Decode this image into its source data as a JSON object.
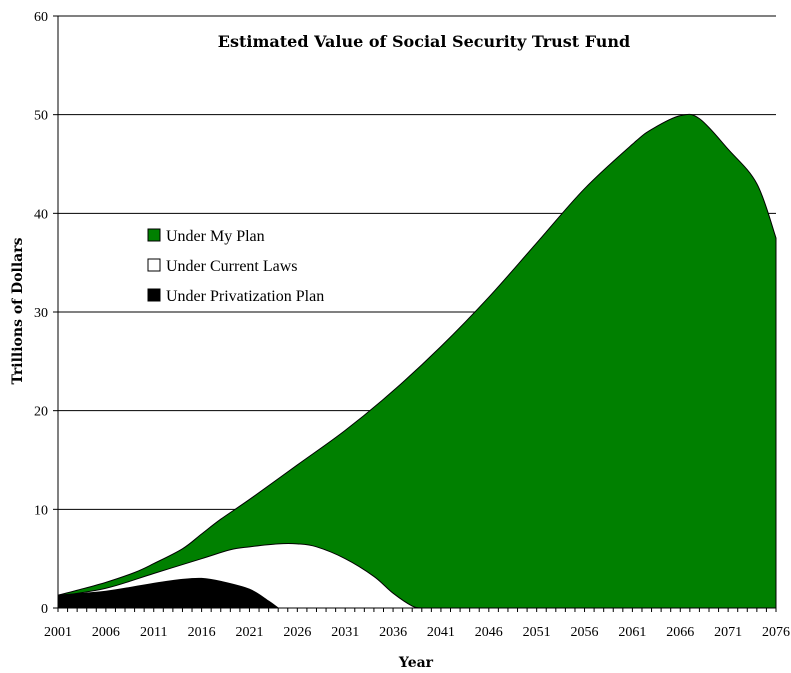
{
  "chart_data": {
    "type": "area",
    "title": "Estimated Value of Social Security Trust Fund",
    "xlabel": "Year",
    "ylabel": "Trillions of Dollars",
    "ylim": [
      0,
      60
    ],
    "yticks": [
      0,
      10,
      20,
      30,
      40,
      50,
      60
    ],
    "xlim": [
      2001,
      2076
    ],
    "xticks": [
      2001,
      2006,
      2011,
      2016,
      2021,
      2026,
      2031,
      2036,
      2041,
      2046,
      2051,
      2056,
      2061,
      2066,
      2071,
      2076
    ],
    "grid": "horizontal",
    "legend_position": "left",
    "series": [
      {
        "name": "Under My Plan",
        "color": "#008000",
        "x": [
          2001,
          2003,
          2006,
          2009,
          2011,
          2014,
          2016,
          2018,
          2021,
          2026,
          2031,
          2036,
          2041,
          2046,
          2051,
          2056,
          2061,
          2063,
          2066,
          2068,
          2071,
          2074,
          2076
        ],
        "values": [
          1.3,
          1.8,
          2.6,
          3.6,
          4.5,
          6.0,
          7.5,
          9.0,
          11.0,
          14.5,
          18.0,
          22.0,
          26.5,
          31.5,
          37.0,
          42.5,
          47.0,
          48.5,
          49.9,
          49.6,
          46.5,
          43.0,
          37.5
        ]
      },
      {
        "name": "Under Current Laws",
        "color": "#ffffff",
        "x": [
          2001,
          2006,
          2011,
          2016,
          2019,
          2021,
          2024,
          2026,
          2028,
          2031,
          2034,
          2036,
          2038,
          2039
        ],
        "values": [
          1.2,
          2.0,
          3.5,
          5.0,
          5.9,
          6.2,
          6.5,
          6.5,
          6.2,
          5.0,
          3.2,
          1.5,
          0.2,
          0
        ]
      },
      {
        "name": "Under Privatization Plan",
        "color": "#000000",
        "x": [
          2001,
          2006,
          2011,
          2014,
          2016,
          2018,
          2021,
          2023,
          2024
        ],
        "values": [
          1.3,
          1.7,
          2.5,
          2.9,
          3.0,
          2.7,
          1.9,
          0.7,
          0
        ]
      }
    ]
  }
}
